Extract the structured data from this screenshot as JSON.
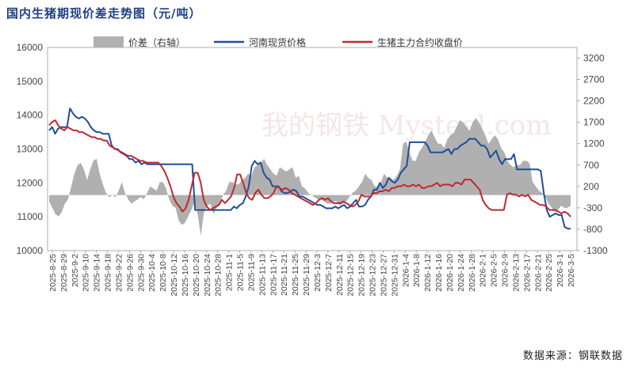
{
  "title": "国内生猪期现价差走势图（元/吨）",
  "source": "数据来源：钢联数据",
  "watermark": "我的钢铁 Mysteel.com",
  "chart_data": {
    "type": "line",
    "left_axis": {
      "ticks": [
        10000,
        11000,
        12000,
        13000,
        14000,
        15000,
        16000
      ],
      "ylim": [
        10000,
        16000
      ]
    },
    "right_axis": {
      "ticks": [
        -1300,
        -800,
        -300,
        200,
        700,
        1200,
        1700,
        2200,
        2700,
        3200
      ],
      "ylim": [
        -1300,
        3450
      ]
    },
    "x_ticks": [
      "2025-8-25",
      "2025-8-29",
      "2025-9-2",
      "2025-9-10",
      "2025-9-14",
      "2025-9-18",
      "2025-9-22",
      "2025-9-26",
      "2025-9-30",
      "2025-10-4",
      "2025-10-8",
      "2025-10-12",
      "2025-10-16",
      "2025-10-20",
      "2025-10-24",
      "2025-10-28",
      "2025-11-1",
      "2025-11-5",
      "2025-11-9",
      "2025-11-13",
      "2025-11-17",
      "2025-11-21",
      "2025-11-25",
      "2025-11-29",
      "2025-12-3",
      "2025-12-7",
      "2025-12-11",
      "2025-12-15",
      "2025-12-19",
      "2025-12-23",
      "2025-12-27",
      "2025-12-31",
      "2026-1-4",
      "2026-1-8",
      "2026-1-12",
      "2026-1-16",
      "2026-1-20",
      "2026-1-24",
      "2026-1-28",
      "2026-2-1",
      "2026-2-5",
      "2026-2-9",
      "2026-2-13",
      "2026-2-17",
      "2026-2-21",
      "2026-2-25",
      "2026-3-1",
      "2026-3-5"
    ],
    "legend_position": "top",
    "colors": {
      "spread": "#b0b0b0",
      "spot": "#1f4e9c",
      "futures": "#c0282e"
    },
    "series": [
      {
        "name": "价差（右轴）",
        "type": "area",
        "axis": "right",
        "values": [
          -150,
          -300,
          -450,
          -500,
          -400,
          -200,
          -100,
          200,
          500,
          700,
          750,
          600,
          350,
          600,
          800,
          850,
          500,
          250,
          50,
          -50,
          0,
          -50,
          100,
          300,
          50,
          -100,
          -200,
          -150,
          -100,
          -50,
          -100,
          50,
          200,
          150,
          100,
          300,
          300,
          150,
          -100,
          -250,
          -300,
          -600,
          -700,
          -650,
          -500,
          -350,
          -150,
          -450,
          -950,
          -400,
          -250,
          -200,
          -450,
          -300,
          -200,
          0,
          100,
          300,
          300,
          250,
          250,
          350,
          400,
          500,
          450,
          650,
          700,
          750,
          850,
          700,
          600,
          500,
          450,
          650,
          600,
          550,
          600,
          650,
          400,
          450,
          200,
          150,
          50,
          0,
          -50,
          -100,
          -100,
          -150,
          -200,
          -200,
          -150,
          -150,
          -250,
          -200,
          -150,
          -50,
          50,
          100,
          200,
          300,
          500,
          400,
          350,
          200,
          200,
          300,
          500,
          400,
          400,
          350,
          450,
          600,
          1200,
          1250,
          1000,
          800,
          800,
          1000,
          1100,
          1250,
          1400,
          1500,
          1350,
          1200,
          1200,
          1100,
          1300,
          1400,
          1450,
          1600,
          1750,
          1700,
          1600,
          1500,
          1700,
          1800,
          1700,
          1550,
          1400,
          1200,
          1300,
          1400,
          1300,
          1100,
          1000,
          800,
          700,
          650,
          700,
          700,
          800,
          800,
          750,
          300,
          200,
          100,
          50,
          -50,
          -200,
          -300,
          -400,
          -350,
          -250,
          -300,
          -300,
          -250
        ]
      },
      {
        "name": "河南现货价格",
        "type": "line",
        "axis": "left",
        "values": [
          13550,
          13650,
          13450,
          13600,
          13650,
          13650,
          13650,
          14200,
          14050,
          13950,
          13900,
          13950,
          13900,
          13800,
          13650,
          13550,
          13500,
          13500,
          13450,
          13450,
          13450,
          13100,
          13000,
          13000,
          12900,
          12850,
          12800,
          12700,
          12700,
          12600,
          12650,
          12550,
          12600,
          12550,
          12550,
          12550,
          12550,
          12550,
          12550,
          12550,
          12550,
          12550,
          12550,
          12550,
          12550,
          12550,
          12550,
          12550,
          12550,
          11200,
          11200,
          11200,
          11200,
          11200,
          11200,
          11200,
          11200,
          11200,
          11200,
          11200,
          11200,
          11200,
          11300,
          11250,
          11350,
          11400,
          11600,
          11900,
          12500,
          12650,
          12550,
          12600,
          12300,
          12150,
          12100,
          11900,
          11900,
          11900,
          11750,
          11700,
          11700,
          11750,
          11800,
          11750,
          11600,
          11600,
          11550,
          11500,
          11450,
          11400,
          11350,
          11350,
          11300,
          11250,
          11250,
          11250,
          11300,
          11250,
          11300,
          11350,
          11250,
          11300,
          11400,
          11500,
          11300,
          11300,
          11350,
          11500,
          11600,
          11800,
          11800,
          12000,
          11850,
          11950,
          12150,
          12050,
          12000,
          12100,
          12300,
          12400,
          12500,
          13200,
          13200,
          13200,
          13200,
          13200,
          13200,
          13100,
          12900,
          12900,
          12900,
          12900,
          12900,
          12950,
          13000,
          12850,
          13000,
          13000,
          13100,
          13150,
          13200,
          13300,
          13300,
          13300,
          13200,
          13100,
          13100,
          13000,
          12750,
          12850,
          12950,
          12700,
          12550,
          12700,
          12700,
          12700,
          12850,
          12400,
          12400,
          12400,
          12400,
          12400,
          12400,
          12400,
          12400,
          12350,
          11700,
          11200,
          11000,
          11050,
          11100,
          11050,
          11050,
          10700,
          10650,
          10650
        ]
      },
      {
        "name": "生猪主力合约收盘价",
        "type": "line",
        "axis": "left",
        "values": [
          13700,
          13800,
          13850,
          13700,
          13600,
          13550,
          13650,
          13600,
          13550,
          13550,
          13500,
          13500,
          13450,
          13400,
          13350,
          13350,
          13300,
          13300,
          13250,
          13250,
          13100,
          13050,
          13000,
          12950,
          12900,
          12850,
          12800,
          12800,
          12750,
          12700,
          12650,
          12650,
          12600,
          12600,
          12600,
          12600,
          12600,
          12500,
          12350,
          12150,
          11900,
          11600,
          11400,
          11300,
          11150,
          11250,
          11500,
          11900,
          12300,
          12300,
          12000,
          11500,
          11300,
          11200,
          11250,
          11300,
          11350,
          11500,
          11400,
          11500,
          11600,
          11850,
          12250,
          12250,
          12000,
          11700,
          11550,
          11500,
          11700,
          11800,
          11650,
          11550,
          11550,
          11600,
          11700,
          11900,
          11850,
          11800,
          11850,
          11800,
          11700,
          11650,
          11600,
          11550,
          11500,
          11450,
          11400,
          11350,
          11400,
          11500,
          11550,
          11500,
          11550,
          11450,
          11400,
          11400,
          11400,
          11450,
          11400,
          11350,
          11300,
          11350,
          11450,
          11650,
          11600,
          11600,
          11600,
          11700,
          11700,
          11750,
          11750,
          11800,
          11750,
          11850,
          11850,
          11900,
          11900,
          11950,
          11900,
          11900,
          11950,
          11900,
          11950,
          11850,
          11850,
          11900,
          11900,
          11950,
          12000,
          11900,
          11950,
          11950,
          11950,
          11900,
          12000,
          12000,
          11950,
          12100,
          12100,
          12100,
          12000,
          11900,
          11800,
          11500,
          11350,
          11250,
          11200,
          11200,
          11200,
          11200,
          11200,
          11650,
          11700,
          11650,
          11650,
          11600,
          11650,
          11600,
          11650,
          11500,
          11450,
          11400,
          11350,
          11350,
          11300,
          11200,
          11200,
          11200,
          11150,
          11100,
          11150,
          11100,
          11000
        ]
      }
    ]
  }
}
